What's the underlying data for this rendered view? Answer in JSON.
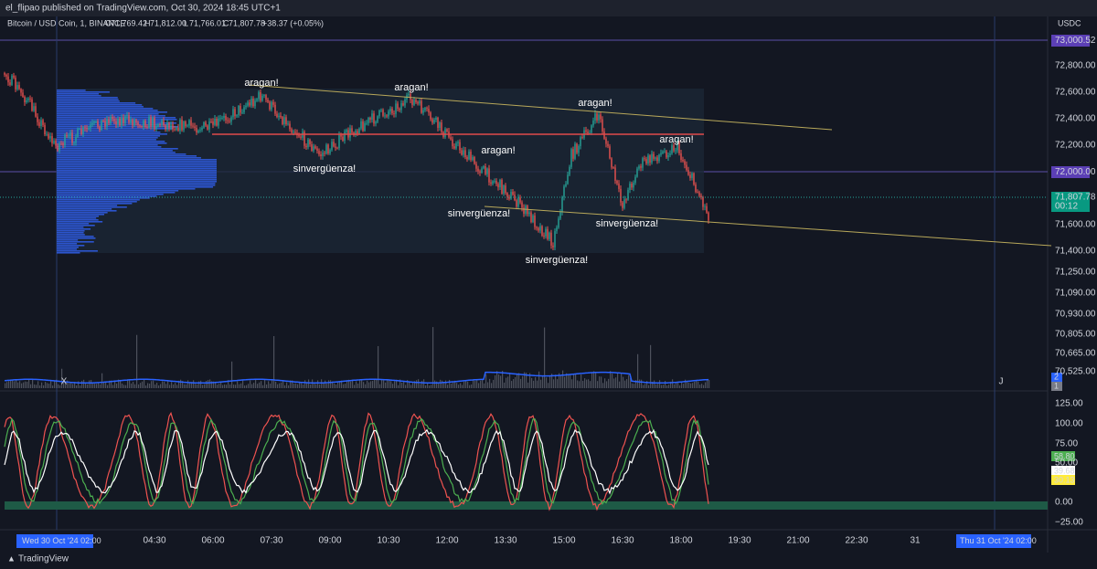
{
  "header": {
    "publisher": "el_flipao published on TradingView.com, Oct 30, 2024 18:45 UTC+1"
  },
  "symbol": {
    "name": "Bitcoin / USD Coin, 1, BINANCE",
    "ohlc": [
      {
        "label": "O",
        "value": "71,769.42"
      },
      {
        "label": "H",
        "value": "71,812.00"
      },
      {
        "label": "L",
        "value": "71,766.01"
      },
      {
        "label": "C",
        "value": "71,807.78"
      }
    ],
    "change": "+38.37 (+0.05%)"
  },
  "price_axis": {
    "currency": "USDC",
    "labels": [
      "72,800.00",
      "72,600.00",
      "72,400.00",
      "72,200.00",
      "71,600.00",
      "71,400.00",
      "71,250.00",
      "71,090.00",
      "70,930.00",
      "70,805.00",
      "70,665.00",
      "70,525.00"
    ],
    "marked": {
      "top": "73,000.52",
      "level": "72,000.00",
      "last": "71,807.78",
      "countdown": "00:12"
    },
    "counts": [
      "2",
      "1"
    ]
  },
  "oscillator_axis": {
    "labels": [
      "125.00",
      "100.00",
      "75.00",
      "50.00",
      "0.00",
      "−25.00"
    ],
    "values": [
      "58.80",
      "39.68",
      "30.13"
    ]
  },
  "time_axis": {
    "start": "Wed 30 Oct '24  02:00",
    "end": "Thu 31 Oct '24  02:00",
    "labels": [
      "04:30",
      "06:00",
      "07:30",
      "09:00",
      "10:30",
      "12:00",
      "13:30",
      "15:00",
      "16:30",
      "18:00",
      "19:30",
      "21:00",
      "22:30",
      "31"
    ]
  },
  "annotations": [
    "aragan!",
    "aragan!",
    "aragan!",
    "aragan!",
    "aragan!",
    "sinvergüenza!",
    "sinvergüenza!",
    "sinvergüenza!",
    "sinvergüenza!"
  ],
  "markers": [
    "X",
    "J"
  ],
  "footer": "TradingView"
}
